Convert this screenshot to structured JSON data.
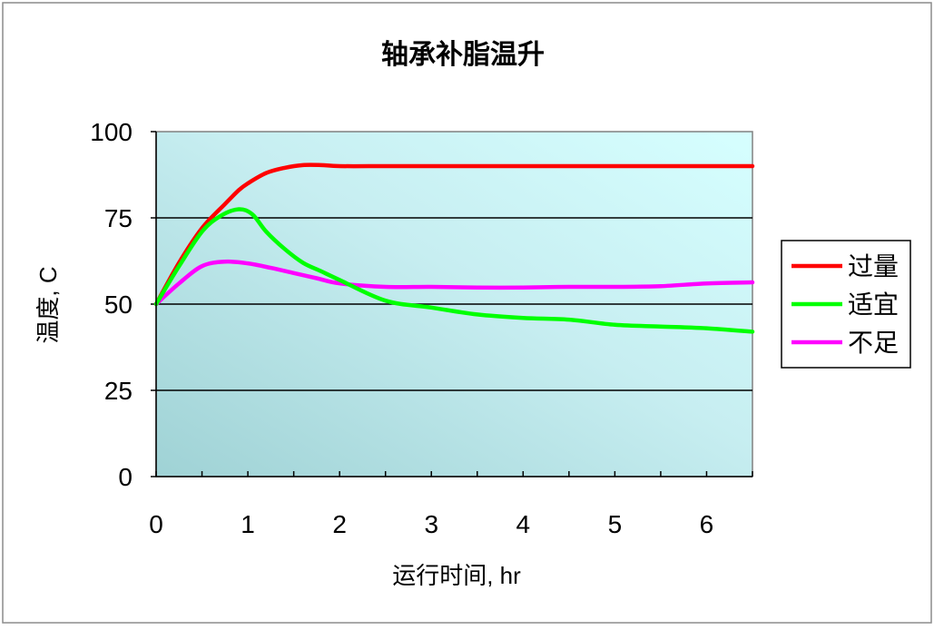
{
  "chart_data": {
    "type": "line",
    "title": "轴承补脂温升",
    "xlabel": "运行时间, hr",
    "ylabel": "温度, C",
    "xlim": [
      0,
      6.5
    ],
    "ylim": [
      0,
      100
    ],
    "xticks": [
      0,
      1,
      2,
      3,
      4,
      5,
      6
    ],
    "yticks": [
      0,
      25,
      50,
      75,
      100
    ],
    "grid": "horizontal",
    "legend_position": "right",
    "series": [
      {
        "name": "过量",
        "color": "#ff0000",
        "x": [
          0,
          0.25,
          0.5,
          0.75,
          0.9,
          1.0,
          1.2,
          1.4,
          1.6,
          1.8,
          2.0,
          2.5,
          3,
          3.5,
          4,
          4.5,
          5,
          5.5,
          6,
          6.5
        ],
        "y": [
          50,
          62,
          72,
          79,
          83,
          85,
          88,
          89.5,
          90.3,
          90.3,
          90,
          90,
          90,
          90,
          90,
          90,
          90,
          90,
          90,
          90
        ]
      },
      {
        "name": "适宜",
        "color": "#00ff00",
        "x": [
          0,
          0.25,
          0.5,
          0.7,
          0.9,
          1.05,
          1.2,
          1.4,
          1.6,
          1.8,
          2.0,
          2.5,
          3,
          3.5,
          4,
          4.5,
          5,
          5.5,
          6,
          6.5
        ],
        "y": [
          50,
          61,
          71,
          75.5,
          77.5,
          76,
          71,
          66,
          62,
          59.5,
          57,
          51,
          49,
          47,
          46,
          45.5,
          44,
          43.5,
          43,
          42
        ]
      },
      {
        "name": "不足",
        "color": "#ff00ff",
        "x": [
          0,
          0.25,
          0.5,
          0.75,
          1.0,
          1.25,
          1.5,
          1.75,
          2.0,
          2.5,
          3,
          3.5,
          4,
          4.5,
          5,
          5.5,
          6,
          6.5
        ],
        "y": [
          50,
          56,
          61,
          62.3,
          61.8,
          60.5,
          59,
          57.5,
          56,
          55,
          55,
          54.8,
          54.8,
          55,
          55,
          55.2,
          56,
          56.3
        ]
      }
    ]
  }
}
